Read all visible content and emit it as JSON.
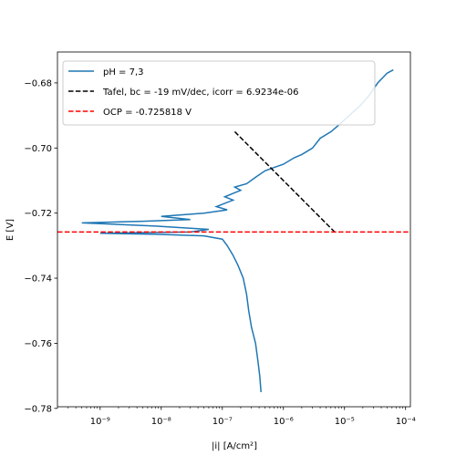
{
  "chart_data": {
    "type": "line",
    "title": "",
    "xlabel": "|i| [A/cm²]",
    "ylabel": "E [V]",
    "xscale": "log",
    "xlim": [
      2e-10,
      0.00012
    ],
    "ylim": [
      -0.7795,
      -0.6705
    ],
    "x_ticks": [
      1e-09,
      1e-08,
      1e-07,
      1e-06,
      1e-05,
      0.0001
    ],
    "x_tick_labels": [
      "10⁻⁹",
      "10⁻⁸",
      "10⁻⁷",
      "10⁻⁶",
      "10⁻⁵",
      "10⁻⁴"
    ],
    "y_ticks": [
      -0.78,
      -0.76,
      -0.74,
      -0.72,
      -0.7,
      -0.68
    ],
    "y_tick_labels": [
      "−0.78",
      "−0.76",
      "−0.74",
      "−0.72",
      "−0.70",
      "−0.68"
    ],
    "legend": {
      "position": "top-left",
      "entries": [
        {
          "label": "pH = 7,3",
          "color": "#1f77b4",
          "style": "solid"
        },
        {
          "label": "Tafel, bc = -19 mV/dec, icorr = 6.9234e-06",
          "color": "#000000",
          "style": "dashed"
        },
        {
          "label": "OCP = -0.725818 V",
          "color": "#ff0000",
          "style": "dashed"
        }
      ]
    },
    "series": [
      {
        "name": "pH = 7,3",
        "color": "#1f77b4",
        "points": [
          [
            4.3e-07,
            -0.775
          ],
          [
            4.1e-07,
            -0.77
          ],
          [
            3.8e-07,
            -0.765
          ],
          [
            3.5e-07,
            -0.76
          ],
          [
            3e-07,
            -0.755
          ],
          [
            2.7e-07,
            -0.75
          ],
          [
            2.5e-07,
            -0.745
          ],
          [
            2.2e-07,
            -0.74
          ],
          [
            1.8e-07,
            -0.736
          ],
          [
            1.5e-07,
            -0.733
          ],
          [
            1.2e-07,
            -0.73
          ],
          [
            1e-07,
            -0.728
          ],
          [
            5e-08,
            -0.727
          ],
          [
            8e-09,
            -0.7265
          ],
          [
            1e-09,
            -0.7262
          ],
          [
            3e-08,
            -0.7258
          ],
          [
            6e-08,
            -0.725
          ],
          [
            8e-09,
            -0.724
          ],
          [
            2e-09,
            -0.7235
          ],
          [
            5e-10,
            -0.723
          ],
          [
            5e-09,
            -0.7225
          ],
          [
            3e-08,
            -0.722
          ],
          [
            1e-08,
            -0.721
          ],
          [
            5e-08,
            -0.72
          ],
          [
            1.2e-07,
            -0.719
          ],
          [
            8e-08,
            -0.718
          ],
          [
            1.5e-07,
            -0.716
          ],
          [
            1.1e-07,
            -0.715
          ],
          [
            2e-07,
            -0.713
          ],
          [
            1.6e-07,
            -0.712
          ],
          [
            2.5e-07,
            -0.711
          ],
          [
            3.5e-07,
            -0.709
          ],
          [
            5e-07,
            -0.707
          ],
          [
            7e-07,
            -0.706
          ],
          [
            1e-06,
            -0.705
          ],
          [
            1.5e-06,
            -0.703
          ],
          [
            2e-06,
            -0.702
          ],
          [
            3e-06,
            -0.7
          ],
          [
            4e-06,
            -0.697
          ],
          [
            6e-06,
            -0.695
          ],
          [
            8e-06,
            -0.693
          ],
          [
            1.2e-05,
            -0.69
          ],
          [
            1.8e-05,
            -0.687
          ],
          [
            2.5e-05,
            -0.684
          ],
          [
            3.5e-05,
            -0.68
          ],
          [
            5e-05,
            -0.677
          ],
          [
            6.3e-05,
            -0.676
          ]
        ]
      },
      {
        "name": "Tafel",
        "color": "#000000",
        "points": [
          [
            1.6e-07,
            -0.695
          ],
          [
            6.9234e-06,
            -0.7258
          ]
        ]
      }
    ],
    "hlines": [
      {
        "name": "OCP",
        "y": -0.725818,
        "color": "#ff0000"
      }
    ]
  }
}
